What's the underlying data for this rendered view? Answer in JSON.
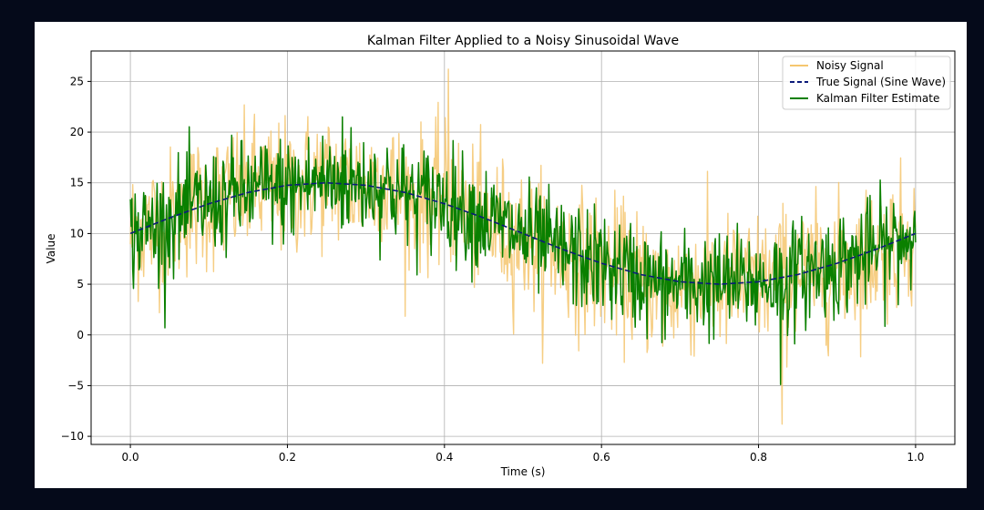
{
  "colors": {
    "background": "#050a1a",
    "figure": "#ffffff",
    "grid": "#b0b0b0",
    "noisy": "#f5c66f",
    "true": "#0b1a7a",
    "kalman": "#0a8000"
  },
  "chart_data": {
    "type": "line",
    "title": "Kalman Filter Applied to a Noisy Sinusoidal Wave",
    "xlabel": "Time (s)",
    "ylabel": "Value",
    "xlim": [
      -0.05,
      1.05
    ],
    "ylim": [
      -10.8,
      28.0
    ],
    "xticks": [
      0.0,
      0.2,
      0.4,
      0.6,
      0.8,
      1.0
    ],
    "xtick_labels": [
      "0.0",
      "0.2",
      "0.4",
      "0.6",
      "0.8",
      "1.0"
    ],
    "yticks": [
      -10,
      -5,
      0,
      5,
      10,
      15,
      20,
      25
    ],
    "ytick_labels": [
      "−10",
      "−5",
      "0",
      "5",
      "10",
      "15",
      "20",
      "25"
    ],
    "grid": true,
    "legend_position": "top-right",
    "legend": [
      "Noisy Signal",
      "True Signal (Sine Wave)",
      "Kalman Filter Estimate"
    ],
    "true_signal": {
      "offset": 10,
      "amplitude": 5,
      "frequency_hz": 1
    },
    "series": [
      {
        "name": "Noisy Signal",
        "style": "solid",
        "color": "#f5c66f",
        "x": [
          0.0,
          0.04,
          0.08,
          0.12,
          0.16,
          0.2,
          0.24,
          0.28,
          0.32,
          0.36,
          0.4,
          0.44,
          0.48,
          0.52,
          0.56,
          0.6,
          0.64,
          0.68,
          0.72,
          0.76,
          0.8,
          0.84,
          0.88,
          0.92,
          0.96,
          1.0
        ],
        "y": [
          10.0,
          11.2,
          12.8,
          13.5,
          14.6,
          14.2,
          15.6,
          14.8,
          15.1,
          13.2,
          13.8,
          11.5,
          10.2,
          8.9,
          7.6,
          6.8,
          5.7,
          4.2,
          5.1,
          4.8,
          5.3,
          5.9,
          6.4,
          7.2,
          8.5,
          10.1
        ],
        "extremes": {
          "max": 26.2,
          "max_x": 0.405,
          "min": -8.8,
          "min_x": 0.83
        }
      },
      {
        "name": "True Signal (Sine Wave)",
        "style": "dashed",
        "color": "#0b1a7a",
        "x": [
          0.0,
          0.05,
          0.1,
          0.15,
          0.2,
          0.25,
          0.3,
          0.35,
          0.4,
          0.45,
          0.5,
          0.55,
          0.6,
          0.65,
          0.7,
          0.75,
          0.8,
          0.85,
          0.9,
          0.95,
          1.0
        ],
        "y": [
          10.0,
          11.55,
          12.94,
          14.05,
          14.76,
          15.0,
          14.76,
          14.05,
          12.94,
          11.55,
          10.0,
          8.45,
          7.06,
          5.95,
          5.24,
          5.0,
          5.24,
          5.95,
          7.06,
          8.45,
          10.0
        ]
      },
      {
        "name": "Kalman Filter Estimate",
        "style": "solid",
        "color": "#0a8000",
        "x": [
          0.0,
          0.04,
          0.08,
          0.12,
          0.16,
          0.2,
          0.24,
          0.28,
          0.32,
          0.36,
          0.4,
          0.44,
          0.48,
          0.52,
          0.56,
          0.6,
          0.64,
          0.68,
          0.72,
          0.76,
          0.8,
          0.84,
          0.88,
          0.92,
          0.96,
          1.0
        ],
        "y": [
          9.8,
          11.0,
          12.5,
          13.4,
          14.3,
          14.4,
          15.2,
          14.9,
          14.8,
          13.5,
          13.4,
          11.8,
          10.4,
          9.1,
          7.9,
          6.9,
          5.9,
          4.8,
          5.0,
          5.0,
          5.2,
          5.8,
          6.6,
          7.4,
          8.6,
          9.9
        ],
        "extremes": {
          "max": 21.5,
          "max_x": 0.27,
          "min": -4.9,
          "min_x": 0.828
        }
      }
    ]
  }
}
